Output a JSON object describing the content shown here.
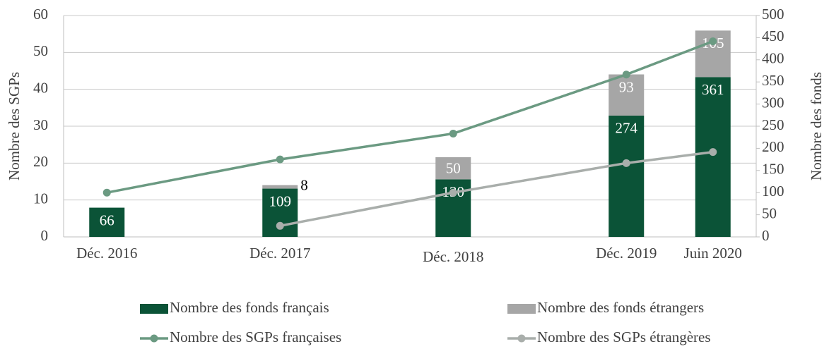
{
  "chart_data": {
    "type": "bar-line",
    "x": [
      "2016-12",
      "2017-12",
      "2018-12",
      "2019-12",
      "2020-06"
    ],
    "x_labels": [
      "Déc. 2016",
      "Déc. 2017",
      "Déc. 2018",
      "Déc. 2019",
      "Juin 2020"
    ],
    "xlim": [
      "2016-09",
      "2020-09"
    ],
    "ylabel": "Nombre des SGPs",
    "y2label": "Nombre des fonds",
    "ylim": [
      0,
      60
    ],
    "yticks": [
      0,
      10,
      20,
      30,
      40,
      50,
      60
    ],
    "y2lim": [
      0,
      500
    ],
    "y2ticks": [
      0,
      50,
      100,
      150,
      200,
      250,
      300,
      350,
      400,
      450,
      500
    ],
    "grid": true,
    "legend": "bottom",
    "series": [
      {
        "name": "Nombre des fonds français",
        "type": "bar",
        "axis": "y2",
        "color": "#0b5337",
        "values": [
          66,
          109,
          130,
          274,
          361
        ]
      },
      {
        "name": "Nombre des fonds étrangers",
        "type": "bar",
        "axis": "y2",
        "color": "#a6a6a6",
        "values": [
          null,
          8,
          50,
          93,
          105
        ]
      },
      {
        "name": "Nombre des SGPs françaises",
        "type": "line",
        "axis": "y",
        "color": "#6b9a82",
        "values": [
          12,
          21,
          28,
          44,
          53
        ]
      },
      {
        "name": "Nombre des SGPs étrangères",
        "type": "line",
        "axis": "y",
        "color": "#a9aeab",
        "values": [
          null,
          3,
          12,
          20,
          23
        ]
      }
    ]
  }
}
